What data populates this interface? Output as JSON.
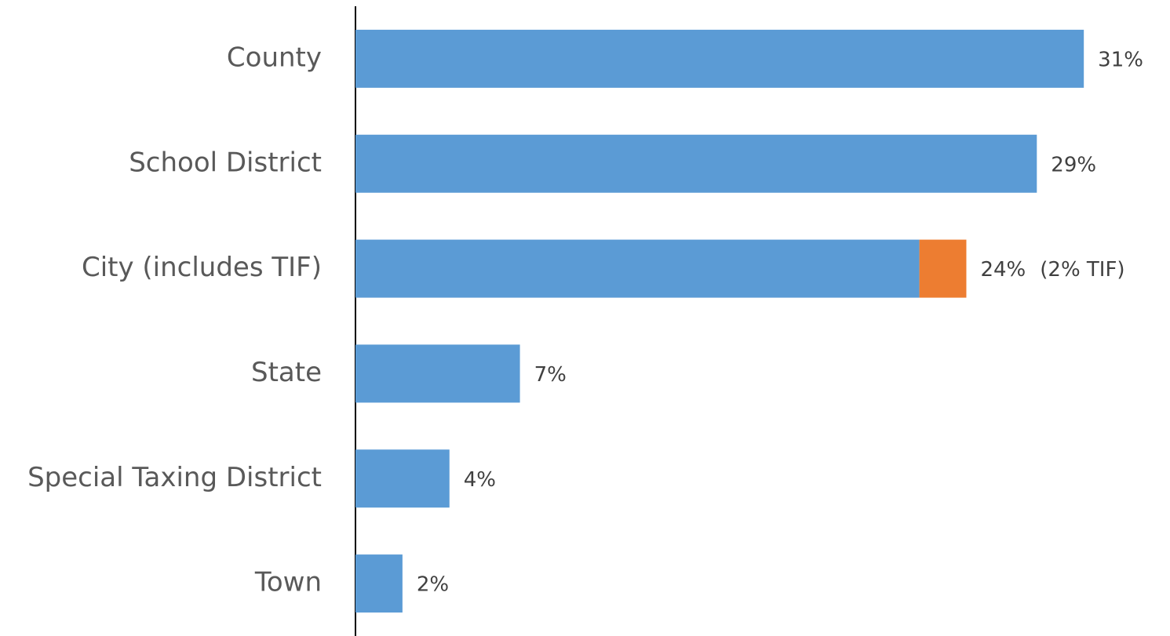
{
  "chart_data": {
    "type": "bar",
    "orientation": "horizontal",
    "stacked": true,
    "categories": [
      "County",
      "School District",
      "City (includes TIF)",
      "State",
      "Special Taxing District",
      "Town"
    ],
    "series": [
      {
        "color": "#5b9bd5",
        "values": [
          31,
          29,
          24,
          7,
          4,
          2
        ],
        "value_labels": [
          "31%",
          "29%",
          "24%",
          "7%",
          "4%",
          "2%"
        ]
      },
      {
        "color": "#ed7d31",
        "values": [
          null,
          null,
          2,
          null,
          null,
          null
        ],
        "value_labels": [
          null,
          null,
          "(2% TIF)",
          null,
          null,
          null
        ]
      }
    ],
    "xlim": [
      0,
      34
    ]
  }
}
